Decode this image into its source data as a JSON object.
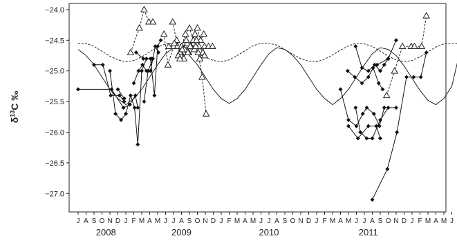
{
  "chart_data": {
    "type": "scatter",
    "title": "",
    "xlabel": "",
    "ylabel": {
      "prefix": "δ",
      "sup": "13",
      "suffix": "C ‰"
    },
    "ylim": [
      -27.3,
      -23.9
    ],
    "yticks": [
      -24.0,
      -24.5,
      -25.0,
      -25.5,
      -26.0,
      -26.5,
      -27.0
    ],
    "ytick_labels": [
      "−24.0",
      "−24.5",
      "−25.0",
      "−25.5",
      "−26.0",
      "−26.5",
      "−27.0"
    ],
    "xlim": [
      0,
      48
    ],
    "months": [
      "J",
      "A",
      "S",
      "O",
      "N",
      "D",
      "J",
      "F",
      "M",
      "A",
      "M",
      "J",
      "J",
      "A",
      "S",
      "O",
      "N",
      "D",
      "J",
      "F",
      "M",
      "A",
      "M",
      "J",
      "J",
      "A",
      "S",
      "O",
      "N",
      "D",
      "J",
      "F",
      "M",
      "A",
      "M",
      "J",
      "J",
      "A",
      "S",
      "O",
      "N",
      "D",
      "J",
      "F",
      "M",
      "A",
      "M",
      "J",
      "J"
    ],
    "years": [
      {
        "label": "2008",
        "x": 3.5
      },
      {
        "label": "2009",
        "x": 13.0
      },
      {
        "label": "2010",
        "x": 24.0
      },
      {
        "label": "2011",
        "x": 36.5
      }
    ],
    "model_curves": [
      {
        "style": "solid",
        "points": [
          [
            0,
            -24.65
          ],
          [
            1,
            -24.75
          ],
          [
            2,
            -24.9
          ],
          [
            3,
            -25.1
          ],
          [
            4,
            -25.3
          ],
          [
            5,
            -25.45
          ],
          [
            6,
            -25.55
          ],
          [
            7,
            -25.45
          ],
          [
            8,
            -25.3
          ],
          [
            9,
            -25.1
          ],
          [
            10,
            -24.9
          ],
          [
            11,
            -24.72
          ],
          [
            12,
            -24.62
          ],
          [
            13,
            -24.65
          ],
          [
            14,
            -24.75
          ],
          [
            15,
            -24.9
          ],
          [
            16,
            -25.1
          ],
          [
            17,
            -25.3
          ],
          [
            18,
            -25.45
          ],
          [
            19,
            -25.53
          ],
          [
            20,
            -25.45
          ],
          [
            21,
            -25.3
          ],
          [
            22,
            -25.1
          ],
          [
            23,
            -24.9
          ],
          [
            24,
            -24.72
          ],
          [
            25,
            -24.62
          ],
          [
            26,
            -24.65
          ],
          [
            27,
            -24.75
          ],
          [
            28,
            -24.9
          ],
          [
            29,
            -25.1
          ],
          [
            30,
            -25.3
          ],
          [
            31,
            -25.45
          ],
          [
            32,
            -25.55
          ],
          [
            33,
            -25.45
          ],
          [
            34,
            -25.3
          ],
          [
            35,
            -25.1
          ],
          [
            36,
            -24.9
          ],
          [
            37,
            -24.72
          ],
          [
            38,
            -24.62
          ],
          [
            39,
            -24.65
          ],
          [
            40,
            -24.75
          ],
          [
            41,
            -24.92
          ],
          [
            42,
            -25.12
          ],
          [
            43,
            -25.32
          ],
          [
            44,
            -25.48
          ],
          [
            45,
            -25.55
          ],
          [
            46,
            -25.45
          ],
          [
            47,
            -25.25
          ],
          [
            48,
            -24.7
          ]
        ]
      },
      {
        "style": "dashed",
        "points": [
          [
            0,
            -24.55
          ],
          [
            1,
            -24.55
          ],
          [
            2,
            -24.6
          ],
          [
            3,
            -24.68
          ],
          [
            4,
            -24.76
          ],
          [
            5,
            -24.82
          ],
          [
            6,
            -24.85
          ],
          [
            7,
            -24.83
          ],
          [
            8,
            -24.77
          ],
          [
            9,
            -24.69
          ],
          [
            10,
            -24.61
          ],
          [
            11,
            -24.56
          ],
          [
            12,
            -24.55
          ],
          [
            13,
            -24.57
          ],
          [
            14,
            -24.63
          ],
          [
            15,
            -24.71
          ],
          [
            16,
            -24.78
          ],
          [
            17,
            -24.83
          ],
          [
            18,
            -24.85
          ],
          [
            19,
            -24.82
          ],
          [
            20,
            -24.75
          ],
          [
            21,
            -24.67
          ],
          [
            22,
            -24.59
          ],
          [
            23,
            -24.55
          ],
          [
            24,
            -24.55
          ],
          [
            25,
            -24.58
          ],
          [
            26,
            -24.65
          ],
          [
            27,
            -24.73
          ],
          [
            28,
            -24.8
          ],
          [
            29,
            -24.84
          ],
          [
            30,
            -24.85
          ],
          [
            31,
            -24.81
          ],
          [
            32,
            -24.74
          ],
          [
            33,
            -24.66
          ],
          [
            34,
            -24.59
          ],
          [
            35,
            -24.55
          ],
          [
            36,
            -24.56
          ],
          [
            37,
            -24.6
          ],
          [
            38,
            -24.68
          ],
          [
            39,
            -24.76
          ],
          [
            40,
            -24.82
          ],
          [
            41,
            -24.85
          ],
          [
            42,
            -24.83
          ],
          [
            43,
            -24.77
          ],
          [
            44,
            -24.69
          ],
          [
            45,
            -24.61
          ],
          [
            46,
            -24.56
          ],
          [
            47,
            -24.55
          ],
          [
            48,
            -24.55
          ]
        ]
      }
    ],
    "diamond_series": [
      {
        "points": [
          [
            0,
            -25.3
          ],
          [
            4.2,
            -25.3
          ],
          [
            5.7,
            -25.6
          ],
          [
            6.5,
            -25.55
          ],
          [
            7.2,
            -25.4
          ],
          [
            7.5,
            -25.6
          ]
        ]
      },
      {
        "points": [
          [
            2,
            -24.9
          ],
          [
            3.1,
            -24.9
          ],
          [
            4.1,
            -25.4
          ],
          [
            5.2,
            -25.4
          ],
          [
            5.8,
            -25.5
          ]
        ]
      },
      {
        "points": [
          [
            4,
            -25.0
          ],
          [
            4.7,
            -25.7
          ],
          [
            5.4,
            -25.8
          ],
          [
            6.0,
            -25.7
          ],
          [
            6.6,
            -25.4
          ],
          [
            7.1,
            -25.6
          ],
          [
            7.5,
            -26.2
          ],
          [
            8.0,
            -25.0
          ],
          [
            8.6,
            -24.8
          ],
          [
            9.1,
            -24.8
          ],
          [
            9.6,
            -25.4
          ],
          [
            10.0,
            -24.6
          ],
          [
            10.4,
            -24.5
          ]
        ]
      },
      {
        "points": [
          [
            5,
            -25.3
          ],
          [
            5.8,
            -25.45
          ]
        ]
      },
      {
        "points": [
          [
            7.0,
            -25.2
          ],
          [
            7.6,
            -25.0
          ],
          [
            8.1,
            -24.9
          ],
          [
            8.6,
            -25.0
          ],
          [
            9.1,
            -25.0
          ],
          [
            9.7,
            -24.6
          ],
          [
            10.1,
            -24.7
          ]
        ]
      },
      {
        "points": [
          [
            7.3,
            -24.7
          ],
          [
            8.2,
            -24.8
          ],
          [
            9.3,
            -24.8
          ]
        ]
      },
      {
        "points": [
          [
            8.3,
            -25.5
          ],
          [
            8.8,
            -25.0
          ],
          [
            9.4,
            -24.8
          ]
        ]
      },
      {
        "points": [
          [
            34.9,
            -24.6
          ],
          [
            35.7,
            -24.95
          ],
          [
            36.5,
            -25.0
          ],
          [
            37.3,
            -24.9
          ],
          [
            38.0,
            -25.0
          ],
          [
            38.5,
            -24.9
          ],
          [
            39.0,
            -24.8
          ],
          [
            40.0,
            -24.5
          ]
        ]
      },
      {
        "points": [
          [
            33.9,
            -25.0
          ],
          [
            34.8,
            -25.1
          ],
          [
            35.7,
            -25.2
          ],
          [
            36.5,
            -25.1
          ],
          [
            37.1,
            -24.95
          ],
          [
            37.8,
            -25.2
          ],
          [
            38.3,
            -25.3
          ]
        ]
      },
      {
        "points": [
          [
            33.0,
            -25.3
          ],
          [
            34.0,
            -25.8
          ],
          [
            35.0,
            -25.9
          ],
          [
            35.8,
            -25.7
          ],
          [
            36.3,
            -25.6
          ],
          [
            37.2,
            -25.7
          ],
          [
            37.9,
            -25.9
          ],
          [
            38.5,
            -25.6
          ]
        ]
      },
      {
        "points": [
          [
            34.0,
            -25.9
          ],
          [
            35.2,
            -26.1
          ],
          [
            36.5,
            -25.9
          ],
          [
            37.5,
            -25.9
          ],
          [
            38.0,
            -26.1
          ]
        ]
      },
      {
        "points": [
          [
            34.9,
            -25.6
          ],
          [
            35.5,
            -26.0
          ],
          [
            36.3,
            -26.1
          ],
          [
            37.0,
            -26.1
          ],
          [
            38.0,
            -25.8
          ],
          [
            39.0,
            -25.6
          ],
          [
            40.0,
            -25.6
          ]
        ]
      },
      {
        "points": [
          [
            37.0,
            -27.1
          ],
          [
            38.9,
            -26.6
          ],
          [
            40.1,
            -26.0
          ],
          [
            41.3,
            -25.1
          ],
          [
            42.2,
            -25.1
          ],
          [
            43.1,
            -25.1
          ],
          [
            43.8,
            -24.7
          ]
        ]
      },
      {
        "points": [
          [
            37.6,
            -24.9
          ],
          [
            39.0,
            -24.8
          ]
        ]
      }
    ],
    "triangle_series": [
      {
        "points": [
          [
            6.6,
            -24.7
          ],
          [
            7.7,
            -24.3
          ],
          [
            8.3,
            -24.0
          ],
          [
            8.9,
            -24.2
          ],
          [
            9.4,
            -24.2
          ]
        ]
      },
      {
        "points": [
          [
            10.8,
            -24.4
          ],
          [
            11.3,
            -24.9
          ],
          [
            12.0,
            -24.6
          ],
          [
            12.4,
            -24.5
          ],
          [
            12.9,
            -24.7
          ],
          [
            13.3,
            -24.8
          ],
          [
            13.7,
            -24.55
          ],
          [
            14.2,
            -24.6
          ],
          [
            14.7,
            -24.4
          ],
          [
            15.1,
            -24.7
          ],
          [
            15.6,
            -25.1
          ],
          [
            16.1,
            -25.7
          ]
        ]
      },
      {
        "points": [
          [
            11.9,
            -24.2
          ],
          [
            12.5,
            -24.6
          ],
          [
            13.0,
            -24.6
          ],
          [
            13.5,
            -24.4
          ],
          [
            14.0,
            -24.3
          ],
          [
            14.5,
            -24.5
          ],
          [
            15.0,
            -24.3
          ],
          [
            15.4,
            -24.5
          ],
          [
            15.8,
            -24.4
          ]
        ]
      },
      {
        "points": [
          [
            11.4,
            -24.6
          ],
          [
            12.1,
            -24.55
          ],
          [
            12.8,
            -24.7
          ],
          [
            13.4,
            -24.65
          ],
          [
            13.9,
            -24.7
          ],
          [
            14.6,
            -24.65
          ],
          [
            15.2,
            -24.6
          ],
          [
            15.7,
            -24.7
          ]
        ]
      },
      {
        "points": [
          [
            12.6,
            -24.75
          ],
          [
            13.1,
            -24.65
          ],
          [
            13.6,
            -24.5
          ],
          [
            14.1,
            -24.6
          ],
          [
            14.8,
            -24.6
          ],
          [
            15.3,
            -24.8
          ],
          [
            15.9,
            -24.6
          ],
          [
            16.4,
            -24.6
          ],
          [
            16.9,
            -24.6
          ]
        ]
      },
      {
        "points": [
          [
            12.8,
            -24.8
          ],
          [
            13.8,
            -24.7
          ],
          [
            14.9,
            -24.5
          ],
          [
            15.9,
            -24.75
          ]
        ]
      },
      {
        "points": [
          [
            38.8,
            -25.4
          ],
          [
            39.8,
            -25.0
          ],
          [
            40.8,
            -24.6
          ],
          [
            41.9,
            -24.6
          ]
        ]
      },
      {
        "points": [
          [
            42.3,
            -24.6
          ],
          [
            43.2,
            -24.6
          ],
          [
            43.8,
            -24.1
          ]
        ]
      }
    ]
  }
}
